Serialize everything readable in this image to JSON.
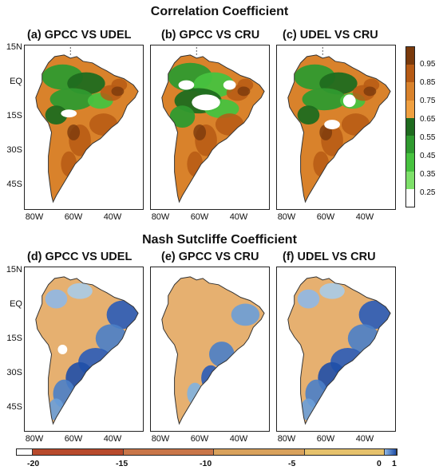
{
  "section_titles": {
    "correlation": "Correlation Coefficient",
    "nash": "Nash Sutcliffe Coefficient"
  },
  "panels": [
    {
      "label": "(a) GPCC VS UDEL",
      "metric": "correlation"
    },
    {
      "label": "(b) GPCC VS CRU",
      "metric": "correlation"
    },
    {
      "label": "(c) UDEL VS CRU",
      "metric": "correlation"
    },
    {
      "label": "(d) GPCC VS UDEL",
      "metric": "nash"
    },
    {
      "label": "(e) GPCC VS CRU",
      "metric": "nash"
    },
    {
      "label": "(f) UDEL VS CRU",
      "metric": "nash"
    }
  ],
  "lat_labels": [
    "15N",
    "EQ",
    "15S",
    "30S",
    "45S"
  ],
  "lon_labels": [
    "80W",
    "60W",
    "40W"
  ],
  "correlation_colorbar": {
    "labels": [
      "0.95",
      "0.85",
      "0.75",
      "0.65",
      "0.55",
      "0.45",
      "0.35",
      "0.25"
    ],
    "colors": [
      "#7a3a0c",
      "#b65a14",
      "#d9822b",
      "#f0a040",
      "#1f6b1f",
      "#2f9a2f",
      "#47c23f",
      "#7ee06a",
      "#ffffff"
    ]
  },
  "nash_colorbar": {
    "labels": [
      "-20",
      "-15",
      "-10",
      "-5",
      "0",
      "1"
    ],
    "colors": [
      "#ffffff",
      "#b84a2c",
      "#c97649",
      "#d9a25c",
      "#e6c26c",
      "#2a5cb8"
    ]
  }
}
